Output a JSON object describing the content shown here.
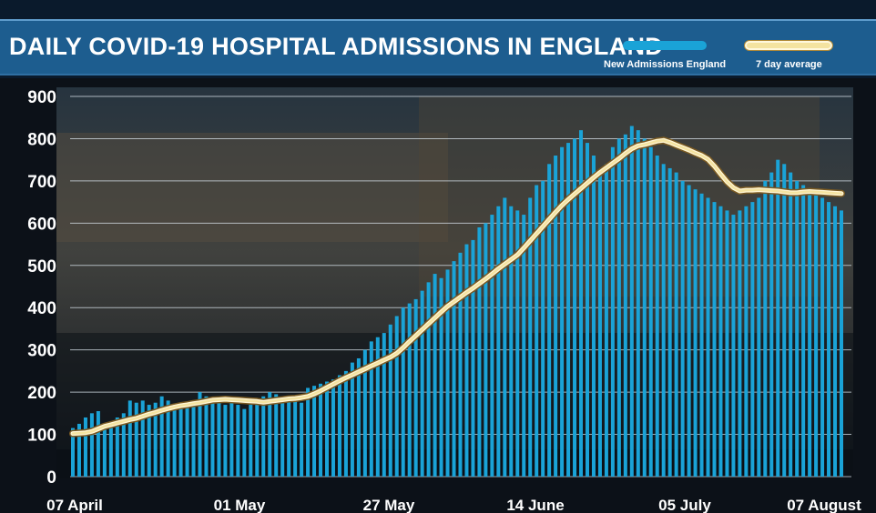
{
  "chart_data": {
    "type": "bar",
    "title": "DAILY COVID-19 HOSPITAL ADMISSIONS IN ENGLAND",
    "xlabel": "",
    "ylabel": "",
    "ylim": [
      0,
      900
    ],
    "yticks": [
      0,
      100,
      200,
      300,
      400,
      500,
      600,
      700,
      800,
      900
    ],
    "grid": true,
    "legend_position": "top-right",
    "x_tick_labels": [
      "07 April",
      "01 May",
      "27 May",
      "14 June",
      "05 July",
      "07 August"
    ],
    "x_tick_indices": [
      0,
      24,
      50,
      68,
      89,
      121
    ],
    "series": [
      {
        "name": "New Admissions England",
        "kind": "bar",
        "color": "#1aa3d7",
        "values": [
          115,
          125,
          140,
          150,
          155,
          120,
          130,
          140,
          150,
          180,
          175,
          180,
          170,
          175,
          190,
          180,
          170,
          165,
          175,
          180,
          200,
          190,
          180,
          175,
          170,
          175,
          170,
          160,
          170,
          180,
          190,
          200,
          195,
          185,
          190,
          185,
          175,
          210,
          215,
          220,
          225,
          230,
          240,
          250,
          270,
          280,
          300,
          320,
          330,
          340,
          360,
          380,
          400,
          410,
          420,
          440,
          460,
          480,
          470,
          490,
          510,
          530,
          550,
          560,
          590,
          600,
          620,
          640,
          660,
          640,
          630,
          620,
          660,
          690,
          700,
          740,
          760,
          780,
          790,
          800,
          820,
          790,
          760,
          720,
          740,
          780,
          800,
          810,
          830,
          820,
          800,
          780,
          760,
          740,
          730,
          720,
          700,
          690,
          680,
          670,
          660,
          650,
          640,
          630,
          620,
          630,
          640,
          650,
          660,
          700,
          720,
          750,
          740,
          720,
          700,
          690,
          680,
          670,
          660,
          650,
          640,
          630
        ]
      },
      {
        "name": "7 day average",
        "kind": "line",
        "color": "#f4e3a1",
        "values": [
          102,
          103,
          104,
          107,
          113,
          119,
          123,
          127,
          131,
          135,
          138,
          143,
          148,
          152,
          157,
          161,
          165,
          168,
          170,
          173,
          175,
          178,
          181,
          182,
          183,
          182,
          181,
          180,
          179,
          178,
          176,
          178,
          180,
          182,
          184,
          185,
          187,
          190,
          196,
          203,
          211,
          219,
          227,
          234,
          241,
          248,
          255,
          262,
          269,
          276,
          283,
          292,
          305,
          320,
          334,
          348,
          362,
          376,
          390,
          403,
          414,
          425,
          436,
          446,
          457,
          468,
          480,
          492,
          503,
          514,
          525,
          541,
          558,
          575,
          592,
          609,
          626,
          642,
          656,
          669,
          682,
          695,
          708,
          720,
          731,
          742,
          753,
          765,
          776,
          783,
          786,
          790,
          794,
          796,
          791,
          785,
          779,
          773,
          766,
          760,
          751,
          735,
          716,
          698,
          684,
          676,
          678,
          678,
          679,
          678,
          677,
          676,
          674,
          672,
          672,
          674,
          675,
          674,
          673,
          672,
          671,
          670
        ]
      }
    ]
  }
}
